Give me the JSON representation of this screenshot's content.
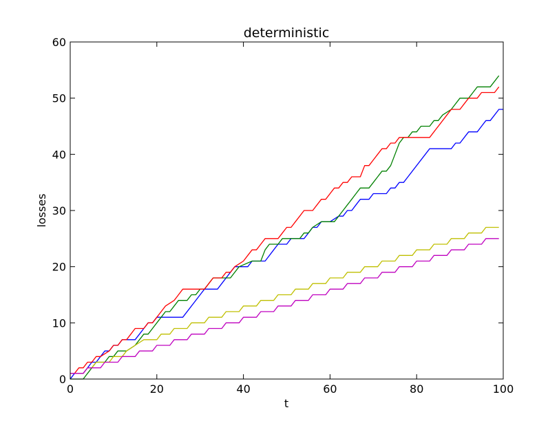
{
  "chart_data": {
    "type": "line",
    "title": "deterministic",
    "xlabel": "t",
    "ylabel": "losses",
    "xlim": [
      0,
      100
    ],
    "ylim": [
      0,
      60
    ],
    "xticks": [
      0,
      20,
      40,
      60,
      80,
      100
    ],
    "yticks": [
      0,
      10,
      20,
      30,
      40,
      50,
      60
    ],
    "grid": false,
    "legend": "none",
    "series": [
      {
        "color": "#0000ff",
        "points": [
          [
            0,
            0
          ],
          [
            1,
            1
          ],
          [
            3,
            1
          ],
          [
            4,
            2
          ],
          [
            5,
            3
          ],
          [
            6,
            3
          ],
          [
            7,
            4
          ],
          [
            8,
            5
          ],
          [
            9,
            5
          ],
          [
            10,
            6
          ],
          [
            11,
            6
          ],
          [
            12,
            7
          ],
          [
            15,
            7
          ],
          [
            16,
            8
          ],
          [
            17,
            9
          ],
          [
            18,
            10
          ],
          [
            19,
            10
          ],
          [
            20,
            11
          ],
          [
            26,
            11
          ],
          [
            30,
            15
          ],
          [
            31,
            16
          ],
          [
            34,
            16
          ],
          [
            37,
            19
          ],
          [
            38,
            20
          ],
          [
            40,
            20
          ],
          [
            41,
            20
          ],
          [
            42,
            21
          ],
          [
            45,
            21
          ],
          [
            47,
            23
          ],
          [
            48,
            24
          ],
          [
            50,
            24
          ],
          [
            51,
            25
          ],
          [
            54,
            25
          ],
          [
            55,
            26
          ],
          [
            56,
            27
          ],
          [
            57,
            27
          ],
          [
            58,
            28
          ],
          [
            59,
            28
          ],
          [
            60,
            28
          ],
          [
            62,
            29
          ],
          [
            63,
            29
          ],
          [
            64,
            30
          ],
          [
            65,
            30
          ],
          [
            66,
            31
          ],
          [
            67,
            32
          ],
          [
            69,
            32
          ],
          [
            70,
            33
          ],
          [
            73,
            33
          ],
          [
            74,
            34
          ],
          [
            75,
            34
          ],
          [
            76,
            35
          ],
          [
            77,
            35
          ],
          [
            78,
            36
          ],
          [
            83,
            41
          ],
          [
            88,
            41
          ],
          [
            89,
            42
          ],
          [
            90,
            42
          ],
          [
            91,
            43
          ],
          [
            92,
            44
          ],
          [
            94,
            44
          ],
          [
            95,
            45
          ],
          [
            96,
            46
          ],
          [
            97,
            46
          ],
          [
            98,
            47
          ],
          [
            99,
            48
          ],
          [
            100,
            48
          ]
        ]
      },
      {
        "color": "#008000",
        "points": [
          [
            0,
            0
          ],
          [
            3,
            0
          ],
          [
            5,
            2
          ],
          [
            6,
            3
          ],
          [
            8,
            3
          ],
          [
            9,
            4
          ],
          [
            10,
            4
          ],
          [
            11,
            5
          ],
          [
            13,
            5
          ],
          [
            15,
            6
          ],
          [
            16,
            7
          ],
          [
            17,
            8
          ],
          [
            18,
            8
          ],
          [
            19,
            9
          ],
          [
            20,
            10
          ],
          [
            21,
            11
          ],
          [
            22,
            12
          ],
          [
            23,
            12
          ],
          [
            24,
            13
          ],
          [
            25,
            14
          ],
          [
            27,
            14
          ],
          [
            28,
            15
          ],
          [
            29,
            15
          ],
          [
            30,
            16
          ],
          [
            31,
            16
          ],
          [
            33,
            18
          ],
          [
            36,
            18
          ],
          [
            37,
            18
          ],
          [
            39,
            20
          ],
          [
            42,
            21
          ],
          [
            44,
            21
          ],
          [
            45,
            23
          ],
          [
            46,
            24
          ],
          [
            47,
            24
          ],
          [
            48,
            24
          ],
          [
            49,
            25
          ],
          [
            53,
            25
          ],
          [
            54,
            26
          ],
          [
            55,
            26
          ],
          [
            56,
            27
          ],
          [
            58,
            28
          ],
          [
            61,
            28
          ],
          [
            63,
            30
          ],
          [
            64,
            31
          ],
          [
            65,
            32
          ],
          [
            66,
            33
          ],
          [
            67,
            34
          ],
          [
            69,
            34
          ],
          [
            70,
            35
          ],
          [
            71,
            36
          ],
          [
            72,
            37
          ],
          [
            73,
            37
          ],
          [
            74,
            38
          ],
          [
            75,
            40
          ],
          [
            76,
            42
          ],
          [
            77,
            43
          ],
          [
            78,
            43
          ],
          [
            79,
            44
          ],
          [
            80,
            44
          ],
          [
            81,
            45
          ],
          [
            83,
            45
          ],
          [
            84,
            46
          ],
          [
            85,
            46
          ],
          [
            86,
            47
          ],
          [
            88,
            48
          ],
          [
            90,
            50
          ],
          [
            92,
            50
          ],
          [
            93,
            51
          ],
          [
            94,
            52
          ],
          [
            97,
            52
          ],
          [
            98,
            53
          ],
          [
            99,
            54
          ]
        ]
      },
      {
        "color": "#ff0000",
        "points": [
          [
            0,
            1
          ],
          [
            1,
            1
          ],
          [
            2,
            2
          ],
          [
            3,
            2
          ],
          [
            4,
            3
          ],
          [
            5,
            3
          ],
          [
            6,
            4
          ],
          [
            7,
            4
          ],
          [
            9,
            5
          ],
          [
            10,
            6
          ],
          [
            11,
            6
          ],
          [
            12,
            7
          ],
          [
            13,
            7
          ],
          [
            14,
            8
          ],
          [
            15,
            9
          ],
          [
            17,
            9
          ],
          [
            18,
            10
          ],
          [
            19,
            10
          ],
          [
            20,
            11
          ],
          [
            21,
            12
          ],
          [
            22,
            13
          ],
          [
            24,
            14
          ],
          [
            25,
            15
          ],
          [
            26,
            16
          ],
          [
            30,
            16
          ],
          [
            31,
            16
          ],
          [
            32,
            17
          ],
          [
            33,
            18
          ],
          [
            35,
            18
          ],
          [
            36,
            19
          ],
          [
            37,
            19
          ],
          [
            38,
            20
          ],
          [
            40,
            21
          ],
          [
            41,
            22
          ],
          [
            42,
            23
          ],
          [
            43,
            23
          ],
          [
            44,
            24
          ],
          [
            45,
            25
          ],
          [
            48,
            25
          ],
          [
            49,
            26
          ],
          [
            50,
            27
          ],
          [
            51,
            27
          ],
          [
            52,
            28
          ],
          [
            53,
            29
          ],
          [
            54,
            30
          ],
          [
            56,
            30
          ],
          [
            57,
            31
          ],
          [
            58,
            32
          ],
          [
            59,
            32
          ],
          [
            60,
            33
          ],
          [
            61,
            34
          ],
          [
            62,
            34
          ],
          [
            63,
            35
          ],
          [
            64,
            35
          ],
          [
            65,
            36
          ],
          [
            67,
            36
          ],
          [
            68,
            38
          ],
          [
            69,
            38
          ],
          [
            70,
            39
          ],
          [
            71,
            40
          ],
          [
            72,
            41
          ],
          [
            73,
            41
          ],
          [
            74,
            42
          ],
          [
            75,
            42
          ],
          [
            76,
            43
          ],
          [
            77,
            43
          ],
          [
            83,
            43
          ],
          [
            87,
            47
          ],
          [
            88,
            48
          ],
          [
            90,
            48
          ],
          [
            91,
            49
          ],
          [
            92,
            50
          ],
          [
            94,
            50
          ],
          [
            95,
            51
          ],
          [
            97,
            51
          ],
          [
            98,
            51
          ],
          [
            99,
            52
          ]
        ]
      },
      {
        "color": "#bfbf00",
        "points": [
          [
            0,
            1
          ],
          [
            3,
            1
          ],
          [
            4,
            2
          ],
          [
            5,
            2
          ],
          [
            6,
            3
          ],
          [
            9,
            3
          ],
          [
            10,
            4
          ],
          [
            12,
            4
          ],
          [
            13,
            5
          ],
          [
            15,
            6
          ],
          [
            17,
            7
          ],
          [
            20,
            7
          ],
          [
            21,
            8
          ],
          [
            23,
            8
          ],
          [
            24,
            9
          ],
          [
            27,
            9
          ],
          [
            28,
            10
          ],
          [
            31,
            10
          ],
          [
            32,
            11
          ],
          [
            35,
            11
          ],
          [
            36,
            12
          ],
          [
            39,
            12
          ],
          [
            40,
            13
          ],
          [
            43,
            13
          ],
          [
            44,
            14
          ],
          [
            47,
            14
          ],
          [
            48,
            15
          ],
          [
            51,
            15
          ],
          [
            52,
            16
          ],
          [
            55,
            16
          ],
          [
            56,
            17
          ],
          [
            59,
            17
          ],
          [
            60,
            18
          ],
          [
            63,
            18
          ],
          [
            64,
            19
          ],
          [
            67,
            19
          ],
          [
            68,
            20
          ],
          [
            71,
            20
          ],
          [
            72,
            21
          ],
          [
            75,
            21
          ],
          [
            76,
            22
          ],
          [
            79,
            22
          ],
          [
            80,
            23
          ],
          [
            83,
            23
          ],
          [
            84,
            24
          ],
          [
            87,
            24
          ],
          [
            88,
            25
          ],
          [
            91,
            25
          ],
          [
            92,
            26
          ],
          [
            95,
            26
          ],
          [
            96,
            27
          ],
          [
            99,
            27
          ]
        ]
      },
      {
        "color": "#bf00bf",
        "points": [
          [
            0,
            1
          ],
          [
            1,
            1
          ],
          [
            2,
            1
          ],
          [
            3,
            1
          ],
          [
            4,
            2
          ],
          [
            7,
            2
          ],
          [
            8,
            3
          ],
          [
            10,
            3
          ],
          [
            11,
            3
          ],
          [
            12,
            4
          ],
          [
            15,
            4
          ],
          [
            16,
            5
          ],
          [
            19,
            5
          ],
          [
            20,
            6
          ],
          [
            23,
            6
          ],
          [
            24,
            7
          ],
          [
            27,
            7
          ],
          [
            28,
            8
          ],
          [
            31,
            8
          ],
          [
            32,
            9
          ],
          [
            35,
            9
          ],
          [
            36,
            10
          ],
          [
            39,
            10
          ],
          [
            40,
            11
          ],
          [
            43,
            11
          ],
          [
            44,
            12
          ],
          [
            47,
            12
          ],
          [
            48,
            13
          ],
          [
            51,
            13
          ],
          [
            52,
            14
          ],
          [
            55,
            14
          ],
          [
            56,
            15
          ],
          [
            59,
            15
          ],
          [
            60,
            16
          ],
          [
            63,
            16
          ],
          [
            64,
            17
          ],
          [
            67,
            17
          ],
          [
            68,
            18
          ],
          [
            71,
            18
          ],
          [
            72,
            19
          ],
          [
            75,
            19
          ],
          [
            76,
            20
          ],
          [
            79,
            20
          ],
          [
            80,
            21
          ],
          [
            83,
            21
          ],
          [
            84,
            22
          ],
          [
            87,
            22
          ],
          [
            88,
            23
          ],
          [
            91,
            23
          ],
          [
            92,
            24
          ],
          [
            95,
            24
          ],
          [
            96,
            25
          ],
          [
            99,
            25
          ]
        ]
      }
    ]
  }
}
